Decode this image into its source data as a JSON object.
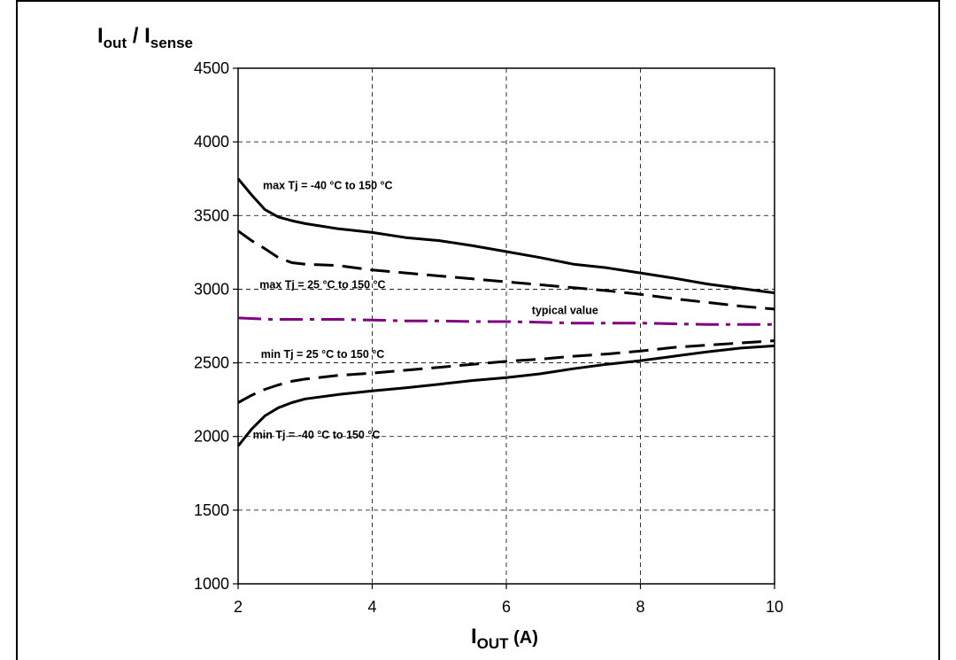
{
  "chart_data": {
    "type": "line",
    "title": "",
    "xlabel_main": "I",
    "xlabel_sub": "OUT",
    "xlabel_unit": " (A)",
    "ylabel_main1": "I",
    "ylabel_sub1": "out",
    "ylabel_slash": " / ",
    "ylabel_main2": "I",
    "ylabel_sub2": "sense",
    "xlim": [
      2,
      10
    ],
    "ylim": [
      1000,
      4500
    ],
    "xticks": [
      2,
      4,
      6,
      8,
      10
    ],
    "yticks": [
      1000,
      1500,
      2000,
      2500,
      3000,
      3500,
      4000,
      4500
    ],
    "grid": true,
    "series": [
      {
        "style": "solid",
        "color": "#000000",
        "x": [
          2,
          2.2,
          2.4,
          2.6,
          2.8,
          3,
          3.5,
          4,
          4.5,
          5,
          5.5,
          6,
          6.5,
          7,
          7.5,
          8,
          8.5,
          9,
          9.5,
          10
        ],
        "y": [
          3750,
          3640,
          3540,
          3490,
          3465,
          3445,
          3410,
          3385,
          3350,
          3330,
          3295,
          3255,
          3215,
          3170,
          3145,
          3110,
          3075,
          3035,
          3005,
          2975
        ]
      },
      {
        "style": "dashed",
        "color": "#000000",
        "x": [
          2,
          2.2,
          2.4,
          2.6,
          2.8,
          3,
          3.5,
          4,
          4.5,
          5,
          5.5,
          6,
          6.5,
          7,
          7.5,
          8,
          8.5,
          9,
          9.5,
          10
        ],
        "y": [
          3395,
          3330,
          3275,
          3215,
          3180,
          3170,
          3160,
          3130,
          3110,
          3090,
          3070,
          3050,
          3030,
          3010,
          2990,
          2965,
          2935,
          2910,
          2885,
          2865
        ]
      },
      {
        "style": "dashdot",
        "color": "#800080",
        "x": [
          2,
          2.5,
          3,
          3.5,
          4,
          4.5,
          5,
          5.5,
          6,
          6.5,
          7,
          7.5,
          8,
          8.5,
          9,
          9.5,
          10
        ],
        "y": [
          2805,
          2795,
          2795,
          2795,
          2790,
          2785,
          2785,
          2780,
          2780,
          2775,
          2770,
          2770,
          2770,
          2765,
          2760,
          2760,
          2760
        ]
      },
      {
        "style": "dashed",
        "color": "#000000",
        "x": [
          2,
          2.2,
          2.4,
          2.6,
          2.8,
          3,
          3.5,
          4,
          4.5,
          5,
          5.5,
          6,
          6.5,
          7,
          7.5,
          8,
          8.5,
          9,
          9.5,
          10
        ],
        "y": [
          2230,
          2280,
          2320,
          2350,
          2375,
          2390,
          2415,
          2430,
          2450,
          2470,
          2490,
          2510,
          2525,
          2545,
          2560,
          2580,
          2605,
          2620,
          2635,
          2650
        ]
      },
      {
        "style": "solid",
        "color": "#000000",
        "x": [
          2,
          2.2,
          2.4,
          2.6,
          2.8,
          3,
          3.5,
          4,
          4.5,
          5,
          5.5,
          6,
          6.5,
          7,
          7.5,
          8,
          8.5,
          9,
          9.5,
          10
        ],
        "y": [
          1935,
          2050,
          2140,
          2195,
          2230,
          2255,
          2285,
          2310,
          2330,
          2355,
          2380,
          2400,
          2425,
          2460,
          2490,
          2515,
          2545,
          2575,
          2600,
          2615
        ]
      }
    ],
    "annotations": [
      {
        "text": "max Tj = -40 °C to 150 °C",
        "x": 2.37,
        "y": 3680
      },
      {
        "text": "max Tj = 25 °C to 150 °C",
        "x": 2.32,
        "y": 3005
      },
      {
        "text": "typical value",
        "x": 6.38,
        "y": 2830
      },
      {
        "text": "min Tj = 25 °C to 150 °C",
        "x": 2.34,
        "y": 2535
      },
      {
        "text": "min Tj = -40 °C to 150 °C",
        "x": 2.22,
        "y": 1985
      }
    ]
  }
}
